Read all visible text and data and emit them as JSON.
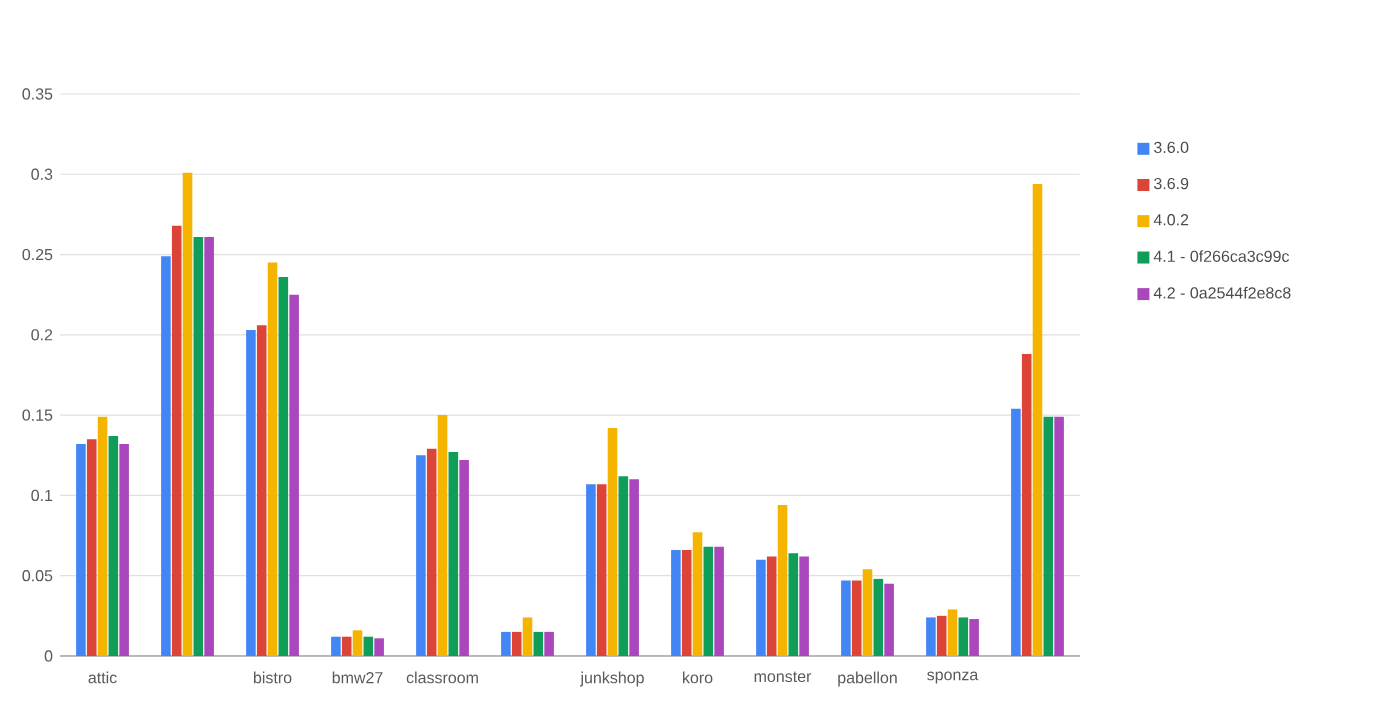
{
  "chart_data": {
    "type": "bar",
    "categories": [
      "attic",
      null,
      "bistro",
      "bmw27",
      "classroom",
      null,
      "junkshop",
      "koro",
      "monster",
      "pabellon",
      "sponza",
      null
    ],
    "series": [
      {
        "name": "3.6.0",
        "color": "#4285f4",
        "values": [
          0.132,
          0.249,
          0.203,
          0.012,
          0.125,
          0.015,
          0.107,
          0.066,
          0.06,
          0.047,
          0.024,
          0.154
        ]
      },
      {
        "name": "3.6.9",
        "color": "#db4437",
        "values": [
          0.135,
          0.268,
          0.206,
          0.012,
          0.129,
          0.015,
          0.107,
          0.066,
          0.062,
          0.047,
          0.025,
          0.188
        ]
      },
      {
        "name": "4.0.2",
        "color": "#f4b400",
        "values": [
          0.149,
          0.301,
          0.245,
          0.016,
          0.15,
          0.024,
          0.142,
          0.077,
          0.094,
          0.054,
          0.029,
          0.294
        ]
      },
      {
        "name": "4.1 - 0f266ca3c99c",
        "color": "#0f9d58",
        "values": [
          0.137,
          0.261,
          0.236,
          0.012,
          0.127,
          0.015,
          0.112,
          0.068,
          0.064,
          0.048,
          0.024,
          0.149
        ]
      },
      {
        "name": "4.2 - 0a2544f2e8c8",
        "color": "#ab47bc",
        "values": [
          0.132,
          0.261,
          0.225,
          0.011,
          0.122,
          0.015,
          0.11,
          0.068,
          0.062,
          0.045,
          0.023,
          0.149
        ]
      }
    ],
    "ylim": [
      0,
      0.35
    ],
    "yticks": [
      0,
      0.05,
      0.1,
      0.15,
      0.2,
      0.25,
      0.3,
      0.35
    ],
    "grid": "y",
    "legend": "right"
  }
}
